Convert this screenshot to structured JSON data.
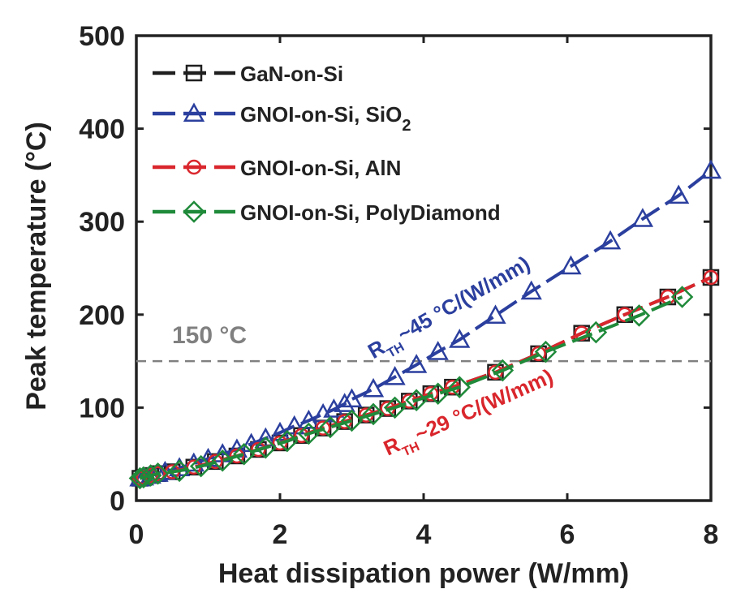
{
  "chart_data": {
    "type": "line",
    "xlabel": "Heat dissipation power (W/mm)",
    "ylabel": "Peak temperature (°C)",
    "xlim": [
      0,
      8
    ],
    "ylim": [
      0,
      500
    ],
    "xticks": [
      "0",
      "2",
      "4",
      "6",
      "8"
    ],
    "yticks": [
      "0",
      "100",
      "200",
      "300",
      "400",
      "500"
    ],
    "grid": false,
    "legend_position": "top-left",
    "reference_line": {
      "y": 150,
      "label": "150 °C",
      "color": "#808080",
      "style": "dashed"
    },
    "annotations": [
      {
        "text": "R",
        "subscript": "TH",
        "rest": "~45 °C/(W/mm)",
        "color": "#2b3f9e",
        "x": 3.3,
        "y": 152,
        "angle": -30
      },
      {
        "text": "R",
        "subscript": "TH",
        "rest": "~29 °C/(W/mm)",
        "color": "#d9262c",
        "x": 3.5,
        "y": 48,
        "angle": -24
      }
    ],
    "series": [
      {
        "name": "GaN-on-Si",
        "marker": "square",
        "color": "#1f1f1f",
        "x": [
          0.05,
          0.1,
          0.2,
          0.3,
          0.5,
          0.8,
          1.1,
          1.4,
          1.7,
          2.0,
          2.3,
          2.6,
          2.9,
          3.2,
          3.5,
          3.8,
          4.1,
          4.4,
          5.0,
          5.6,
          6.2,
          6.8,
          7.4,
          8.0
        ],
        "y": [
          24,
          25,
          27,
          29,
          31,
          36,
          42,
          48,
          55,
          62,
          70,
          78,
          85,
          92,
          99,
          107,
          115,
          122,
          138,
          158,
          180,
          200,
          219,
          240
        ]
      },
      {
        "name": "GNOI-on-Si, SiO2",
        "marker": "triangle",
        "color": "#2b3f9e",
        "x": [
          0.05,
          0.1,
          0.2,
          0.3,
          0.4,
          0.6,
          0.8,
          1.0,
          1.2,
          1.4,
          1.6,
          1.8,
          2.0,
          2.2,
          2.4,
          2.6,
          2.75,
          2.9,
          3.0,
          3.3,
          3.6,
          3.9,
          4.2,
          4.5,
          5.0,
          5.5,
          6.05,
          6.6,
          7.05,
          7.55,
          8.0
        ],
        "y": [
          24,
          25,
          27,
          29,
          31,
          35,
          40,
          45,
          50,
          55,
          61,
          67,
          73,
          80,
          86,
          93,
          98,
          104,
          109,
          120,
          133,
          146,
          160,
          173,
          199,
          225,
          252,
          279,
          303,
          328,
          355
        ]
      },
      {
        "name": "GNOI-on-Si, AlN",
        "marker": "circle",
        "color": "#d9262c",
        "x": [
          0.05,
          0.1,
          0.2,
          0.3,
          0.5,
          0.8,
          1.1,
          1.4,
          1.7,
          2.0,
          2.3,
          2.6,
          2.9,
          3.2,
          3.5,
          3.8,
          4.1,
          4.4,
          5.0,
          5.6,
          6.2,
          6.8,
          7.4,
          8.0
        ],
        "y": [
          24,
          25,
          27,
          29,
          31,
          36,
          42,
          48,
          55,
          62,
          70,
          78,
          85,
          92,
          99,
          107,
          115,
          122,
          138,
          158,
          180,
          200,
          219,
          240
        ]
      },
      {
        "name": "GNOI-on-Si, PolyDiamond",
        "marker": "diamond",
        "color": "#1f8a3a",
        "x": [
          0.05,
          0.1,
          0.2,
          0.3,
          0.6,
          0.9,
          1.2,
          1.5,
          1.8,
          2.1,
          2.4,
          2.7,
          3.0,
          3.3,
          3.6,
          3.9,
          4.2,
          4.5,
          5.1,
          5.7,
          6.4,
          7.0,
          7.6
        ],
        "y": [
          24,
          25,
          27,
          29,
          32,
          37,
          43,
          50,
          57,
          64,
          72,
          79,
          86,
          93,
          100,
          108,
          115,
          122,
          140,
          160,
          181,
          199,
          219
        ]
      }
    ]
  }
}
